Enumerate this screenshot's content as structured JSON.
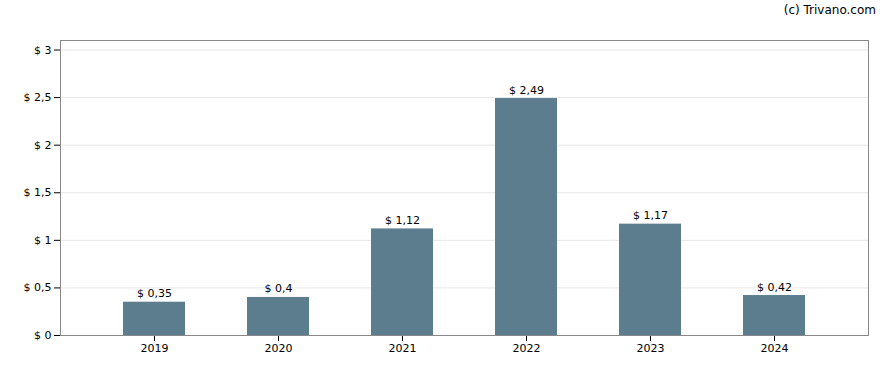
{
  "chart_data": {
    "type": "bar",
    "categories": [
      "2019",
      "2020",
      "2021",
      "2022",
      "2023",
      "2024"
    ],
    "values": [
      0.35,
      0.4,
      1.12,
      2.49,
      1.17,
      0.42
    ],
    "value_labels": [
      "$ 0,35",
      "$ 0,4",
      "$ 1,12",
      "$ 2,49",
      "$ 1,17",
      "$ 0,42"
    ],
    "data_labels": true,
    "color": "#5b7d8d",
    "ylim": [
      0,
      3.1
    ],
    "yticks": [
      {
        "value": 0,
        "label": "$ 0"
      },
      {
        "value": 0.5,
        "label": "$ 0,5"
      },
      {
        "value": 1.0,
        "label": "$ 1"
      },
      {
        "value": 1.5,
        "label": "$ 1,5"
      },
      {
        "value": 2.0,
        "label": "$ 2"
      },
      {
        "value": 2.5,
        "label": "$ 2,5"
      },
      {
        "value": 3.0,
        "label": "$ 3"
      }
    ],
    "grid": true,
    "annotations": [
      "(c) Trivano.com"
    ]
  }
}
